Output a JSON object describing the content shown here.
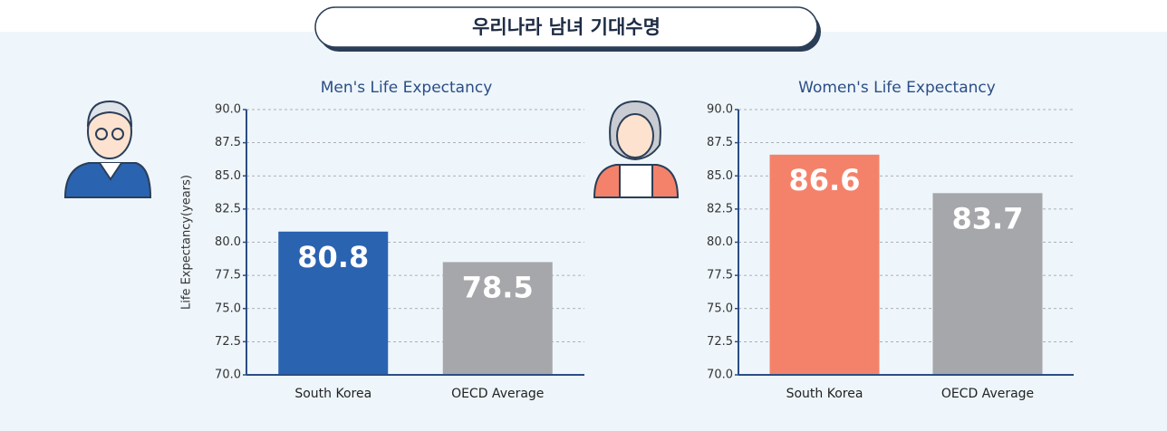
{
  "header": {
    "title": "우리나라 남녀 기대수명"
  },
  "chart_data": [
    {
      "type": "bar",
      "title": "Men's Life Expectancy",
      "ylabel": "Life Expectancy(years)",
      "categories": [
        "South Korea",
        "OECD Average"
      ],
      "values": [
        80.8,
        78.5
      ],
      "colors": [
        "#2a63b0",
        "#a6a7ab"
      ],
      "ylim": [
        70,
        90
      ],
      "yticks": [
        {
          "value": 70,
          "label": "70.0"
        },
        {
          "value": 72.5,
          "label": "72.5"
        },
        {
          "value": 75,
          "label": "75.0"
        },
        {
          "value": 77.5,
          "label": "77.5"
        },
        {
          "value": 80,
          "label": "80.0"
        },
        {
          "value": 82.5,
          "label": "82.5"
        },
        {
          "value": 85,
          "label": "85.0"
        },
        {
          "value": 87.5,
          "label": "87.5"
        },
        {
          "value": 90,
          "label": "90.0"
        }
      ],
      "grid": true
    },
    {
      "type": "bar",
      "title": "Women's Life Expectancy",
      "categories": [
        "South Korea",
        "OECD Average"
      ],
      "values": [
        86.6,
        83.7
      ],
      "colors": [
        "#f4826a",
        "#a6a7ab"
      ],
      "ylim": [
        70,
        90
      ],
      "yticks": [
        {
          "value": 70,
          "label": "70.0"
        },
        {
          "value": 72.5,
          "label": "72.5"
        },
        {
          "value": 75,
          "label": "75.0"
        },
        {
          "value": 77.5,
          "label": "77.5"
        },
        {
          "value": 80,
          "label": "80.0"
        },
        {
          "value": 82.5,
          "label": "82.5"
        },
        {
          "value": 85,
          "label": "85.0"
        },
        {
          "value": 87.5,
          "label": "87.5"
        },
        {
          "value": 90,
          "label": "90.0"
        }
      ],
      "grid": true
    }
  ]
}
